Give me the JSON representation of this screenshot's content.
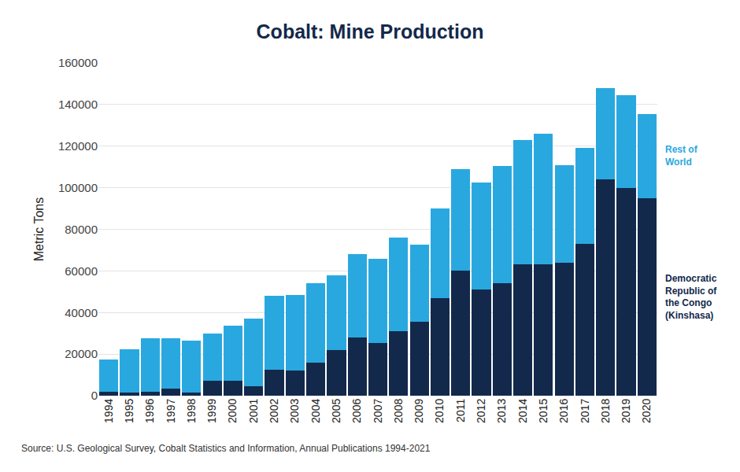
{
  "chart_data": {
    "type": "bar",
    "title": "Cobalt: Mine Production",
    "y_label": "Metric Tons",
    "annotations": [
      "Source: U.S. Geological Survey, Cobalt Statistics and Information, Annual Publications 1994-2021"
    ],
    "categories": [
      "1994",
      "1995",
      "1996",
      "1997",
      "1998",
      "1999",
      "2000",
      "2001",
      "2002",
      "2003",
      "2004",
      "2005",
      "2006",
      "2007",
      "2008",
      "2009",
      "2010",
      "2011",
      "2012",
      "2013",
      "2014",
      "2015",
      "2016",
      "2017",
      "2018",
      "2019",
      "2020"
    ],
    "series": [
      {
        "name": "Democratic Republic of the Congo (Kinshasa)",
        "color": "#13294b",
        "values": [
          2000,
          1500,
          2000,
          3500,
          1500,
          7000,
          7000,
          4500,
          12500,
          12000,
          16000,
          22000,
          28000,
          25500,
          31000,
          35500,
          47000,
          60000,
          51000,
          54000,
          63000,
          63000,
          64000,
          73000,
          104000,
          100000,
          95000
        ]
      },
      {
        "name": "Rest of World",
        "color": "#29a8e0",
        "values": [
          15500,
          21000,
          25500,
          24000,
          25000,
          23000,
          26500,
          32500,
          35500,
          36500,
          38000,
          36000,
          40000,
          40500,
          45000,
          37000,
          43000,
          49000,
          51500,
          56500,
          60000,
          63000,
          47000,
          46000,
          44000,
          44500,
          40500
        ]
      }
    ],
    "stacked": true,
    "ylim": [
      0,
      160000
    ],
    "yticks": [
      0,
      20000,
      40000,
      60000,
      80000,
      100000,
      120000,
      140000,
      160000
    ],
    "grid": true,
    "legend": "right"
  }
}
